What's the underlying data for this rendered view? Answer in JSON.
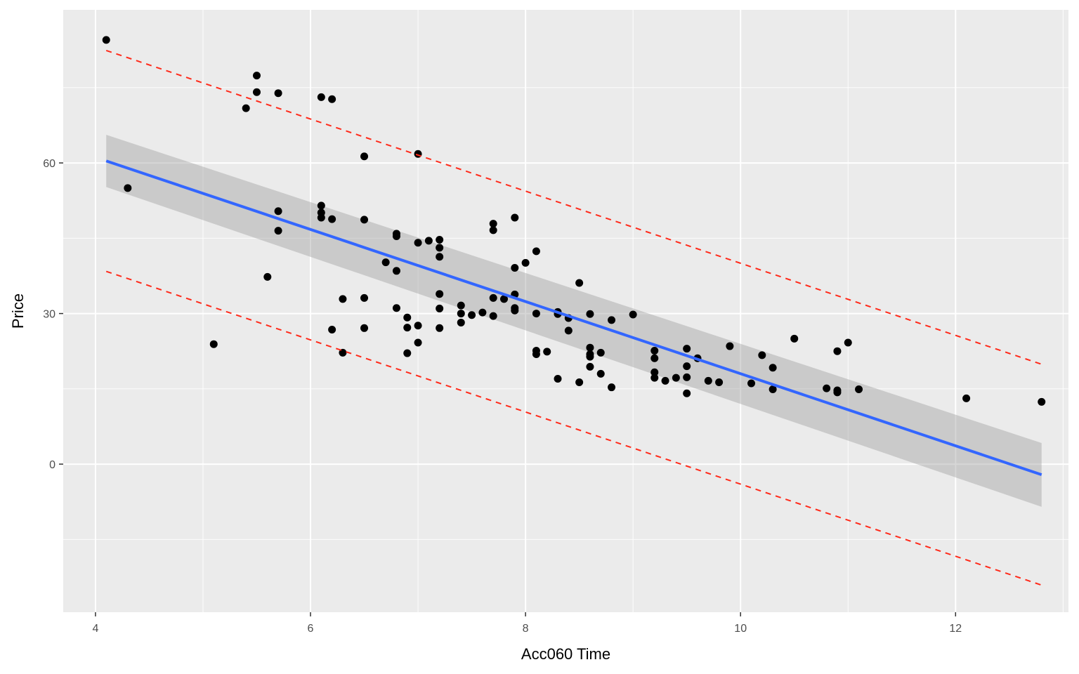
{
  "chart_data": {
    "type": "scatter",
    "title": "",
    "xlabel": "Acc060 Time",
    "ylabel": "Price",
    "xlim": [
      3.7,
      13.05
    ],
    "ylim": [
      -29.5,
      90.5
    ],
    "x_ticks": [
      4,
      6,
      8,
      10,
      12
    ],
    "x_tick_labels": [
      "4",
      "6",
      "8",
      "10",
      "12"
    ],
    "y_ticks": [
      0,
      30,
      60
    ],
    "y_tick_labels": [
      "0",
      "30",
      "60"
    ],
    "grid": true,
    "legend": "none",
    "points": [
      [
        4.1,
        84.5
      ],
      [
        4.3,
        55
      ],
      [
        5.1,
        23.9
      ],
      [
        5.4,
        70.9
      ],
      [
        5.5,
        77.4
      ],
      [
        5.5,
        74.1
      ],
      [
        5.6,
        37.3
      ],
      [
        5.7,
        73.9
      ],
      [
        5.7,
        50.4
      ],
      [
        5.7,
        46.5
      ],
      [
        6.1,
        73.1
      ],
      [
        6.1,
        51.5
      ],
      [
        6.1,
        50.1
      ],
      [
        6.1,
        49.1
      ],
      [
        6.2,
        72.7
      ],
      [
        6.2,
        48.8
      ],
      [
        6.2,
        26.8
      ],
      [
        6.3,
        32.9
      ],
      [
        6.3,
        22.2
      ],
      [
        6.5,
        61.3
      ],
      [
        6.5,
        48.7
      ],
      [
        6.5,
        33.1
      ],
      [
        6.5,
        27.1
      ],
      [
        6.7,
        40.2
      ],
      [
        6.8,
        45.9
      ],
      [
        6.8,
        45.4
      ],
      [
        6.8,
        38.5
      ],
      [
        6.8,
        31.1
      ],
      [
        6.9,
        29.2
      ],
      [
        6.9,
        27.2
      ],
      [
        6.9,
        22.1
      ],
      [
        7.0,
        61.8
      ],
      [
        7.0,
        44.1
      ],
      [
        7.0,
        27.6
      ],
      [
        7.0,
        24.2
      ],
      [
        7.1,
        44.5
      ],
      [
        7.2,
        44.7
      ],
      [
        7.2,
        43.1
      ],
      [
        7.2,
        41.3
      ],
      [
        7.2,
        33.9
      ],
      [
        7.2,
        31
      ],
      [
        7.2,
        27.1
      ],
      [
        7.4,
        31.6
      ],
      [
        7.4,
        30
      ],
      [
        7.4,
        28.2
      ],
      [
        7.5,
        29.7
      ],
      [
        7.6,
        30.2
      ],
      [
        7.7,
        47.9
      ],
      [
        7.7,
        46.6
      ],
      [
        7.7,
        33.1
      ],
      [
        7.7,
        29.5
      ],
      [
        7.8,
        32.9
      ],
      [
        7.9,
        49.1
      ],
      [
        7.9,
        39.1
      ],
      [
        7.9,
        33.8
      ],
      [
        7.9,
        31.1
      ],
      [
        7.9,
        30.6
      ],
      [
        8.0,
        40.1
      ],
      [
        8.1,
        42.4
      ],
      [
        8.1,
        30
      ],
      [
        8.1,
        22.6
      ],
      [
        8.1,
        21.9
      ],
      [
        8.2,
        22.4
      ],
      [
        8.3,
        30.3
      ],
      [
        8.3,
        29.9
      ],
      [
        8.3,
        17
      ],
      [
        8.4,
        29.1
      ],
      [
        8.4,
        26.6
      ],
      [
        8.5,
        36.1
      ],
      [
        8.5,
        16.3
      ],
      [
        8.6,
        29.9
      ],
      [
        8.6,
        23.2
      ],
      [
        8.6,
        21.9
      ],
      [
        8.6,
        21.4
      ],
      [
        8.6,
        19.4
      ],
      [
        8.7,
        22.2
      ],
      [
        8.7,
        18
      ],
      [
        8.8,
        28.7
      ],
      [
        8.8,
        15.3
      ],
      [
        9.0,
        29.8
      ],
      [
        9.2,
        22.6
      ],
      [
        9.2,
        21.1
      ],
      [
        9.2,
        18.3
      ],
      [
        9.2,
        17.2
      ],
      [
        9.3,
        16.6
      ],
      [
        9.4,
        17.2
      ],
      [
        9.5,
        23
      ],
      [
        9.5,
        19.5
      ],
      [
        9.5,
        17.3
      ],
      [
        9.5,
        14.1
      ],
      [
        9.6,
        21.1
      ],
      [
        9.7,
        16.6
      ],
      [
        9.8,
        16.3
      ],
      [
        9.9,
        23.5
      ],
      [
        10.1,
        16.1
      ],
      [
        10.2,
        21.7
      ],
      [
        10.3,
        19.2
      ],
      [
        10.3,
        14.9
      ],
      [
        10.5,
        25
      ],
      [
        10.8,
        15.1
      ],
      [
        10.9,
        22.5
      ],
      [
        10.9,
        14.7
      ],
      [
        10.9,
        14.3
      ],
      [
        11.0,
        24.2
      ],
      [
        11.1,
        14.9
      ],
      [
        12.1,
        13.1
      ],
      [
        12.8,
        12.4
      ]
    ],
    "regression_line": {
      "x": [
        4.1,
        12.8
      ],
      "y": [
        60.4,
        -2.1
      ]
    },
    "confidence_band": {
      "x": [
        4.1,
        12.8
      ],
      "lower": [
        55.2,
        -8.5
      ],
      "upper": [
        65.6,
        4.2
      ]
    },
    "prediction_interval": {
      "x": [
        4.1,
        12.8
      ],
      "lower": [
        38.4,
        -24.1
      ],
      "upper": [
        82.4,
        19.9
      ]
    },
    "colors": {
      "panel_background": "#EBEBEB",
      "grid": "#FFFFFF",
      "points": "#000000",
      "regression_line": "#3366FF",
      "confidence_band": "#999999",
      "prediction_interval": "#FF2A1A"
    }
  }
}
